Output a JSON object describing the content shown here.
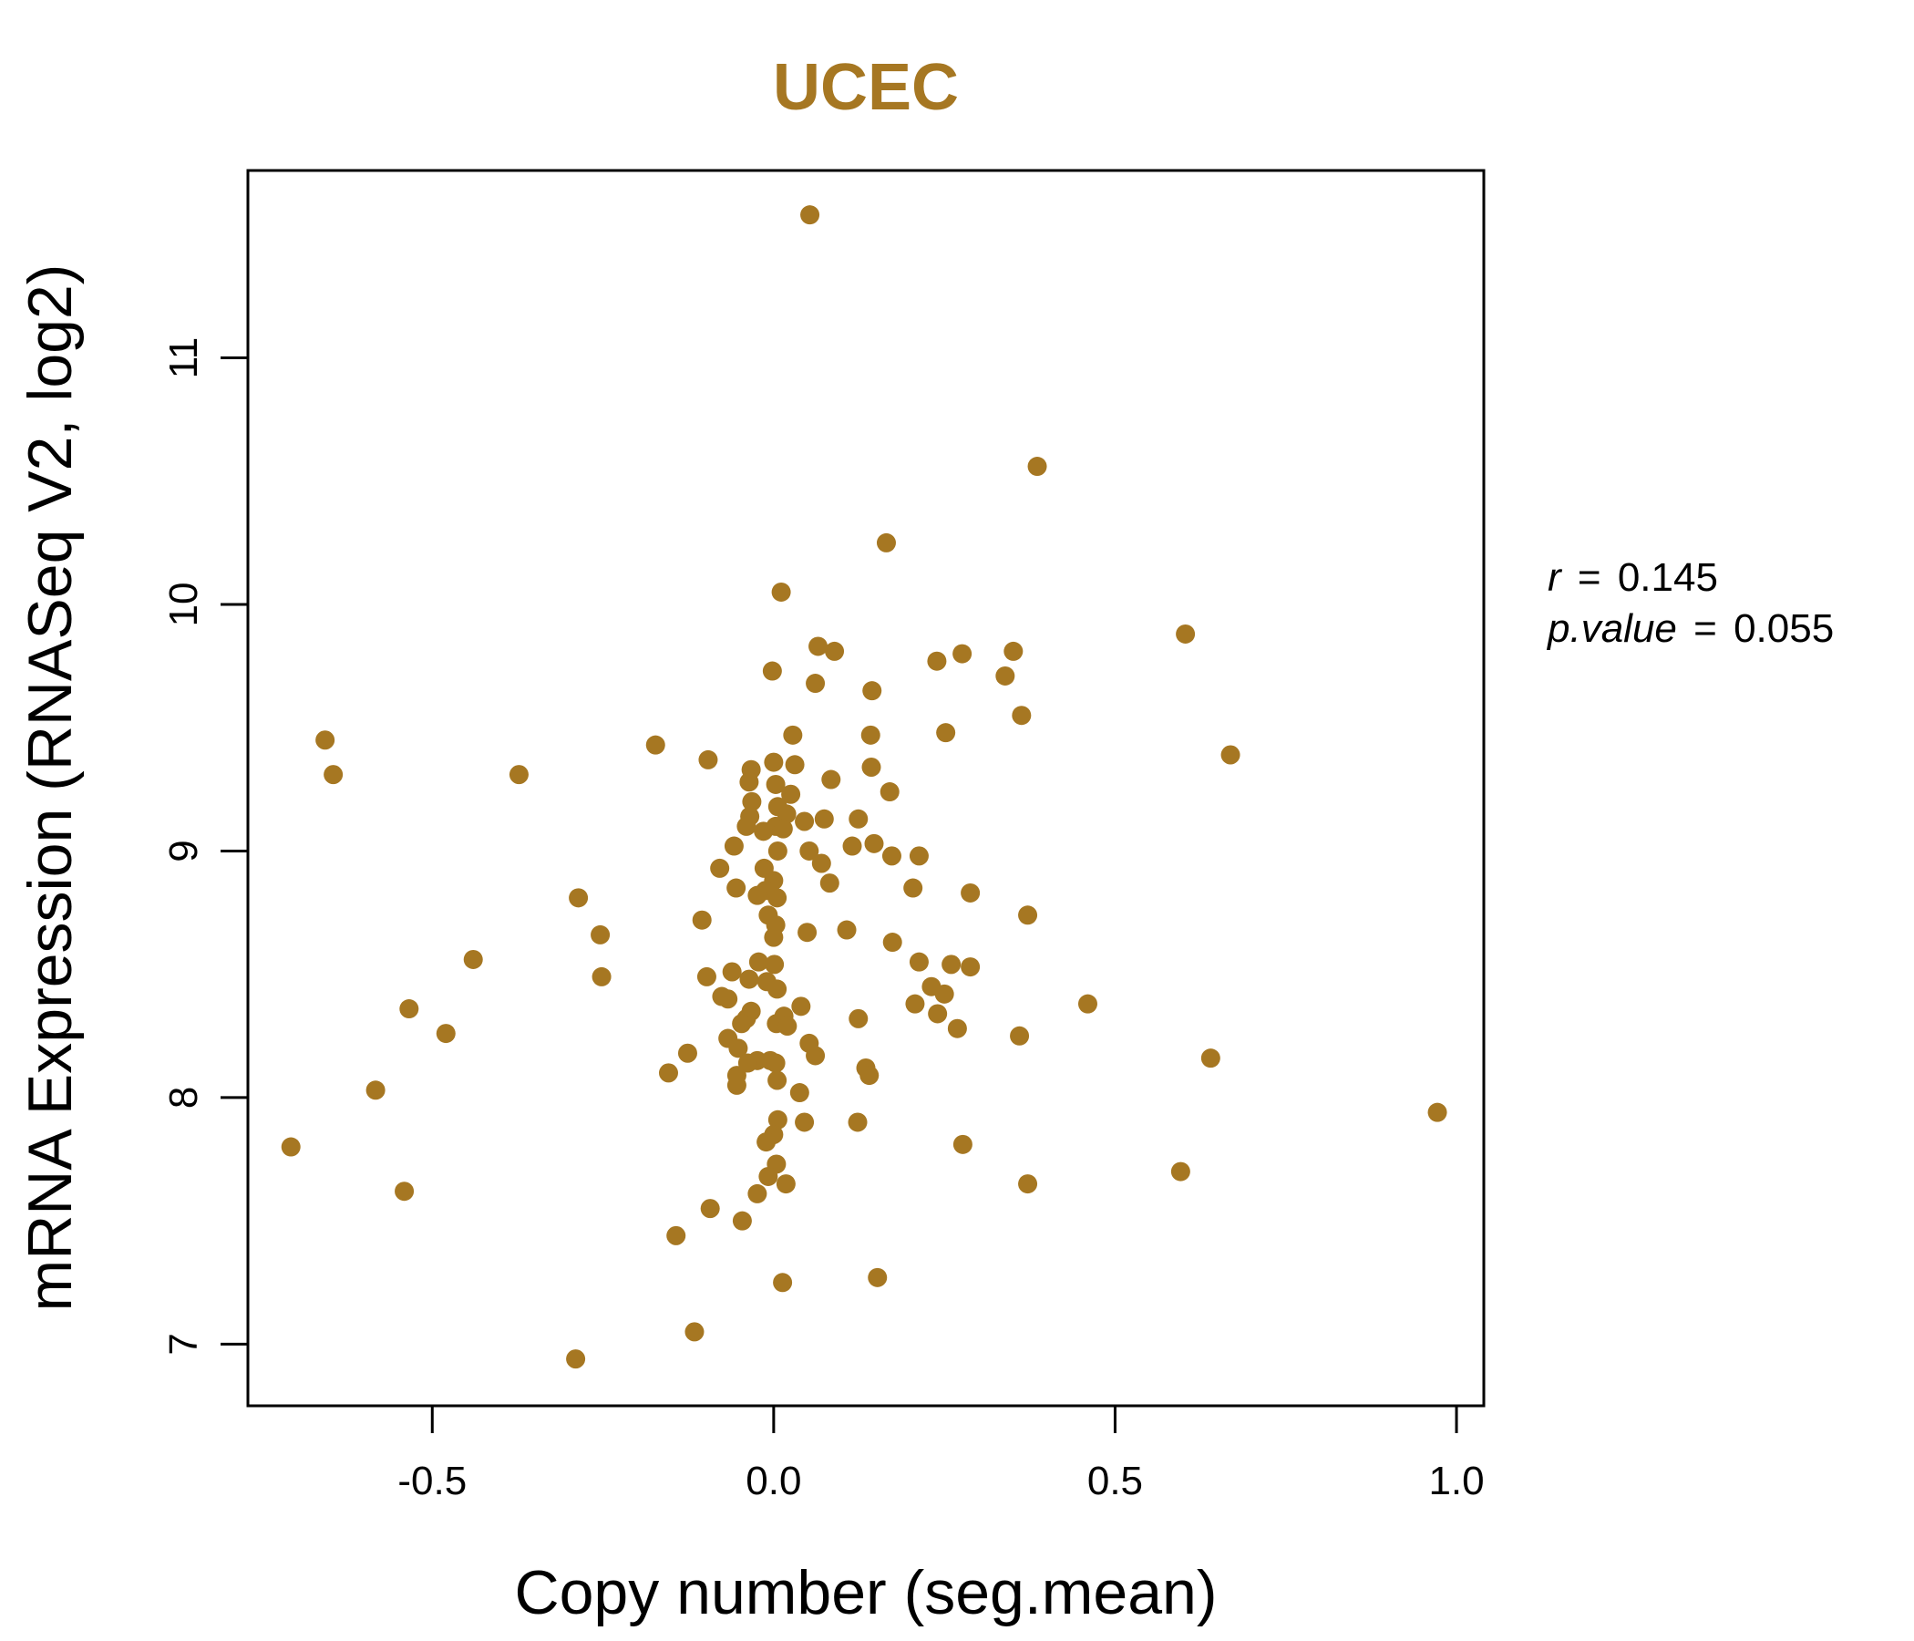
{
  "chart_data": {
    "type": "scatter",
    "title": "UCEC",
    "xlabel": "Copy number (seg.mean)",
    "ylabel": "mRNA Expression (RNASeq V2, log2)",
    "xlim": [
      -0.77,
      1.04
    ],
    "ylim": [
      6.75,
      11.76
    ],
    "xticks": [
      -0.5,
      0.0,
      0.5,
      1.0
    ],
    "xtick_labels": [
      "-0.5",
      "0.0",
      "0.5",
      "1.0"
    ],
    "yticks": [
      7,
      8,
      9,
      10,
      11
    ],
    "ytick_labels": [
      "7",
      "8",
      "9",
      "10",
      "11"
    ],
    "grid": false,
    "color": "#A67722",
    "stats": {
      "r_label": "r",
      "r_value": "0.145",
      "p_label": "p.value",
      "p_value": "0.055"
    },
    "points": [
      [
        0.053,
        11.58
      ],
      [
        0.386,
        10.56
      ],
      [
        0.165,
        10.25
      ],
      [
        0.011,
        10.05
      ],
      [
        0.603,
        9.88
      ],
      [
        0.065,
        9.83
      ],
      [
        0.089,
        9.81
      ],
      [
        0.276,
        9.8
      ],
      [
        0.351,
        9.81
      ],
      [
        0.239,
        9.77
      ],
      [
        -0.002,
        9.73
      ],
      [
        0.339,
        9.71
      ],
      [
        0.061,
        9.68
      ],
      [
        0.144,
        9.65
      ],
      [
        0.363,
        9.55
      ],
      [
        0.252,
        9.48
      ],
      [
        0.028,
        9.47
      ],
      [
        0.142,
        9.47
      ],
      [
        -0.657,
        9.45
      ],
      [
        -0.173,
        9.43
      ],
      [
        0.669,
        9.39
      ],
      [
        -0.096,
        9.37
      ],
      [
        0.0,
        9.36
      ],
      [
        0.031,
        9.35
      ],
      [
        -0.033,
        9.33
      ],
      [
        0.143,
        9.34
      ],
      [
        -0.645,
        9.31
      ],
      [
        -0.373,
        9.31
      ],
      [
        0.084,
        9.29
      ],
      [
        -0.036,
        9.28
      ],
      [
        0.003,
        9.27
      ],
      [
        0.17,
        9.24
      ],
      [
        0.025,
        9.23
      ],
      [
        -0.032,
        9.2
      ],
      [
        0.006,
        9.18
      ],
      [
        0.019,
        9.15
      ],
      [
        -0.035,
        9.14
      ],
      [
        0.045,
        9.12
      ],
      [
        0.074,
        9.13
      ],
      [
        0.124,
        9.13
      ],
      [
        -0.04,
        9.1
      ],
      [
        0.003,
        9.1
      ],
      [
        -0.015,
        9.08
      ],
      [
        0.014,
        9.09
      ],
      [
        -0.058,
        9.02
      ],
      [
        0.115,
        9.02
      ],
      [
        0.147,
        9.03
      ],
      [
        0.006,
        9.0
      ],
      [
        0.052,
        9.0
      ],
      [
        0.173,
        8.98
      ],
      [
        0.213,
        8.98
      ],
      [
        -0.079,
        8.93
      ],
      [
        -0.014,
        8.93
      ],
      [
        0.07,
        8.95
      ],
      [
        0.082,
        8.87
      ],
      [
        0.0,
        8.88
      ],
      [
        -0.055,
        8.85
      ],
      [
        -0.012,
        8.84
      ],
      [
        0.204,
        8.85
      ],
      [
        0.288,
        8.83
      ],
      [
        -0.024,
        8.82
      ],
      [
        0.005,
        8.81
      ],
      [
        -0.286,
        8.81
      ],
      [
        0.372,
        8.74
      ],
      [
        -0.008,
        8.74
      ],
      [
        -0.105,
        8.72
      ],
      [
        0.003,
        8.7
      ],
      [
        0.107,
        8.68
      ],
      [
        -0.254,
        8.66
      ],
      [
        0.049,
        8.67
      ],
      [
        0.0,
        8.65
      ],
      [
        0.174,
        8.63
      ],
      [
        -0.44,
        8.56
      ],
      [
        0.213,
        8.55
      ],
      [
        -0.022,
        8.55
      ],
      [
        0.001,
        8.54
      ],
      [
        0.26,
        8.54
      ],
      [
        0.288,
        8.53
      ],
      [
        -0.061,
        8.51
      ],
      [
        -0.098,
        8.49
      ],
      [
        -0.252,
        8.49
      ],
      [
        -0.036,
        8.48
      ],
      [
        -0.01,
        8.47
      ],
      [
        0.005,
        8.44
      ],
      [
        0.231,
        8.45
      ],
      [
        -0.076,
        8.41
      ],
      [
        0.25,
        8.42
      ],
      [
        -0.067,
        8.4
      ],
      [
        0.207,
        8.38
      ],
      [
        0.46,
        8.38
      ],
      [
        -0.534,
        8.36
      ],
      [
        0.04,
        8.37
      ],
      [
        0.24,
        8.34
      ],
      [
        -0.033,
        8.35
      ],
      [
        0.015,
        8.33
      ],
      [
        -0.04,
        8.32
      ],
      [
        0.124,
        8.32
      ],
      [
        0.004,
        8.3
      ],
      [
        0.02,
        8.29
      ],
      [
        -0.047,
        8.3
      ],
      [
        0.269,
        8.28
      ],
      [
        -0.48,
        8.26
      ],
      [
        0.36,
        8.25
      ],
      [
        -0.067,
        8.24
      ],
      [
        -0.052,
        8.2
      ],
      [
        0.052,
        8.22
      ],
      [
        0.061,
        8.17
      ],
      [
        -0.126,
        8.18
      ],
      [
        0.64,
        8.16
      ],
      [
        -0.024,
        8.15
      ],
      [
        -0.005,
        8.15
      ],
      [
        -0.038,
        8.14
      ],
      [
        0.003,
        8.14
      ],
      [
        0.135,
        8.12
      ],
      [
        -0.154,
        8.1
      ],
      [
        0.14,
        8.09
      ],
      [
        -0.054,
        8.09
      ],
      [
        0.005,
        8.07
      ],
      [
        -0.054,
        8.05
      ],
      [
        0.038,
        8.02
      ],
      [
        -0.583,
        8.03
      ],
      [
        0.972,
        7.94
      ],
      [
        0.006,
        7.91
      ],
      [
        0.045,
        7.9
      ],
      [
        0.123,
        7.9
      ],
      [
        0.0,
        7.85
      ],
      [
        -0.011,
        7.82
      ],
      [
        0.277,
        7.81
      ],
      [
        -0.707,
        7.8
      ],
      [
        0.004,
        7.73
      ],
      [
        0.596,
        7.7
      ],
      [
        -0.008,
        7.68
      ],
      [
        0.018,
        7.65
      ],
      [
        0.372,
        7.65
      ],
      [
        -0.541,
        7.62
      ],
      [
        -0.024,
        7.61
      ],
      [
        -0.093,
        7.55
      ],
      [
        -0.046,
        7.5
      ],
      [
        -0.143,
        7.44
      ],
      [
        0.152,
        7.27
      ],
      [
        0.013,
        7.25
      ],
      [
        -0.116,
        7.05
      ],
      [
        -0.29,
        6.94
      ]
    ]
  }
}
